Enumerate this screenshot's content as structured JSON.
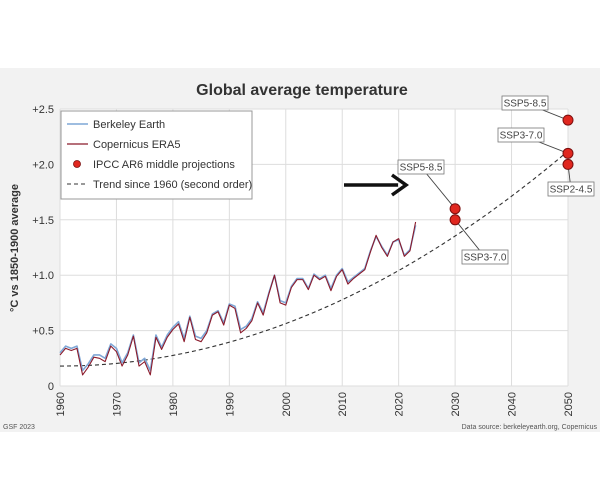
{
  "chart_data": {
    "type": "line",
    "title": "Global average temperature",
    "ylabel": "°C vs 1850-1900 average",
    "xlim": [
      1960,
      2050
    ],
    "ylim": [
      0,
      2.5
    ],
    "grid": true,
    "legend_position": "top-left",
    "x_ticks": [
      1960,
      1970,
      1980,
      1990,
      2000,
      2010,
      2020,
      2030,
      2040,
      2050
    ],
    "x_tick_labels": [
      "1960",
      "1970",
      "1980",
      "1990",
      "2000",
      "2010",
      "2020",
      "2030",
      "2040",
      "2050"
    ],
    "y_ticks": [
      0,
      0.5,
      1.0,
      1.5,
      2.0,
      2.5
    ],
    "y_tick_labels": [
      "0",
      "+0.5",
      "+1.0",
      "+1.5",
      "+2.0",
      "+2.5"
    ],
    "series": [
      {
        "name": "Berkeley Earth",
        "color": "#7fa7d6",
        "x": [
          1960,
          1961,
          1962,
          1963,
          1964,
          1965,
          1966,
          1967,
          1968,
          1969,
          1970,
          1971,
          1972,
          1973,
          1974,
          1975,
          1976,
          1977,
          1978,
          1979,
          1980,
          1981,
          1982,
          1983,
          1984,
          1985,
          1986,
          1987,
          1988,
          1989,
          1990,
          1991,
          1992,
          1993,
          1994,
          1995,
          1996,
          1997,
          1998,
          1999,
          2000,
          2001,
          2002,
          2003,
          2004,
          2005,
          2006,
          2007,
          2008,
          2009,
          2010,
          2011,
          2012,
          2013,
          2014,
          2015,
          2016,
          2017,
          2018,
          2019,
          2020,
          2021,
          2022,
          2023
        ],
        "y": [
          0.3,
          0.36,
          0.34,
          0.36,
          0.14,
          0.2,
          0.28,
          0.28,
          0.25,
          0.38,
          0.34,
          0.21,
          0.3,
          0.46,
          0.21,
          0.25,
          0.14,
          0.46,
          0.35,
          0.46,
          0.53,
          0.58,
          0.43,
          0.63,
          0.45,
          0.43,
          0.5,
          0.65,
          0.68,
          0.57,
          0.74,
          0.72,
          0.51,
          0.54,
          0.61,
          0.76,
          0.66,
          0.84,
          1.0,
          0.77,
          0.75,
          0.9,
          0.97,
          0.97,
          0.88,
          1.01,
          0.97,
          1.0,
          0.88,
          1.0,
          1.06,
          0.94,
          0.98,
          1.02,
          1.06,
          1.22,
          1.35,
          1.26,
          1.18,
          1.3,
          1.32,
          1.18,
          1.23,
          1.45
        ]
      },
      {
        "name": "Copernicus ERA5",
        "color": "#8b1a2b",
        "x": [
          1960,
          1961,
          1962,
          1963,
          1964,
          1965,
          1966,
          1967,
          1968,
          1969,
          1970,
          1971,
          1972,
          1973,
          1974,
          1975,
          1976,
          1977,
          1978,
          1979,
          1980,
          1981,
          1982,
          1983,
          1984,
          1985,
          1986,
          1987,
          1988,
          1989,
          1990,
          1991,
          1992,
          1993,
          1994,
          1995,
          1996,
          1997,
          1998,
          1999,
          2000,
          2001,
          2002,
          2003,
          2004,
          2005,
          2006,
          2007,
          2008,
          2009,
          2010,
          2011,
          2012,
          2013,
          2014,
          2015,
          2016,
          2017,
          2018,
          2019,
          2020,
          2021,
          2022,
          2023
        ],
        "y": [
          0.28,
          0.34,
          0.32,
          0.34,
          0.1,
          0.17,
          0.26,
          0.25,
          0.22,
          0.36,
          0.31,
          0.18,
          0.28,
          0.45,
          0.18,
          0.22,
          0.1,
          0.44,
          0.33,
          0.44,
          0.51,
          0.56,
          0.4,
          0.62,
          0.42,
          0.4,
          0.48,
          0.64,
          0.67,
          0.55,
          0.73,
          0.7,
          0.48,
          0.52,
          0.59,
          0.75,
          0.64,
          0.83,
          1.0,
          0.75,
          0.73,
          0.89,
          0.96,
          0.96,
          0.87,
          1.0,
          0.96,
          0.99,
          0.86,
          0.99,
          1.05,
          0.92,
          0.97,
          1.01,
          1.05,
          1.21,
          1.36,
          1.25,
          1.17,
          1.3,
          1.33,
          1.17,
          1.22,
          1.48
        ]
      },
      {
        "name": "IPCC AR6 middle projections",
        "color": "#e0271f",
        "points": [
          {
            "label": "SSP5-8.5",
            "x": 2030,
            "y": 1.6
          },
          {
            "label": "SSP3-7.0",
            "x": 2030,
            "y": 1.5
          },
          {
            "label": "SSP5-8.5",
            "x": 2050,
            "y": 2.4
          },
          {
            "label": "SSP3-7.0",
            "x": 2050,
            "y": 2.1
          },
          {
            "label": "SSP2-4.5",
            "x": 2050,
            "y": 2.0
          }
        ]
      },
      {
        "name": "Trend since 1960 (second order)",
        "color": "#333333",
        "x": [
          1960,
          2050
        ],
        "y": [
          0.18,
          2.12
        ]
      }
    ],
    "callouts": [
      {
        "label": "SSP5-8.5",
        "x": 2030,
        "y": 1.6
      },
      {
        "label": "SSP3-7.0",
        "x": 2030,
        "y": 1.5
      },
      {
        "label": "SSP5-8.5",
        "x": 2050,
        "y": 2.4
      },
      {
        "label": "SSP3-7.0",
        "x": 2050,
        "y": 2.1
      },
      {
        "label": "SSP2-4.5",
        "x": 2050,
        "y": 2.0
      }
    ],
    "footer_left": "GSF 2023",
    "footer_right": "Data source: berkeleyearth.org, Copernicus"
  },
  "style": {
    "background": "#f2f2f2",
    "plot_background": "#ffffff",
    "grid": "#dddddd",
    "marker_edge": "#7a0e0e"
  }
}
